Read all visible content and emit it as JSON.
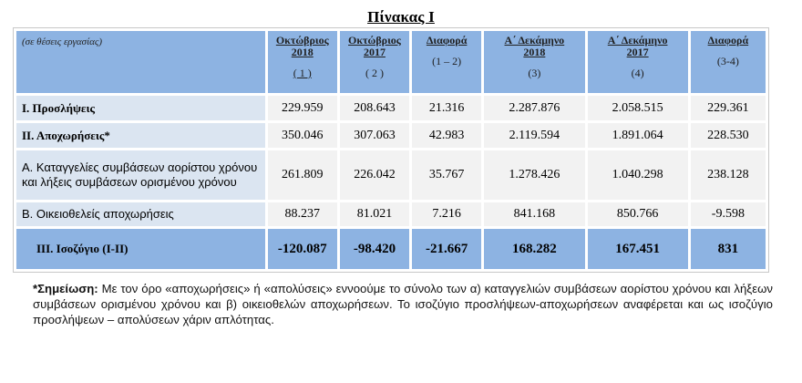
{
  "title": "Πίνακας Ι",
  "table": {
    "unit_label": "(σε θέσεις εργασίας)",
    "columns": [
      {
        "l1": "Οκτώβριος",
        "l2": "2018",
        "sub": "( 1 )"
      },
      {
        "l1": "Οκτώβριος",
        "l2": "2017",
        "sub": "( 2 )"
      },
      {
        "l1": "Διαφορά",
        "l2": "",
        "sub": "(1 – 2)"
      },
      {
        "l1": "Α΄ Δεκάμηνο",
        "l2": "2018",
        "sub": "(3)"
      },
      {
        "l1": "Α΄ Δεκάμηνο",
        "l2": "2017",
        "sub": "(4)"
      },
      {
        "l1": "Διαφορά",
        "l2": "",
        "sub": "(3-4)"
      }
    ],
    "rows": [
      {
        "label": "Ι. Προσλήψεις",
        "values": [
          "229.959",
          "208.643",
          "21.316",
          "2.287.876",
          "2.058.515",
          "229.361"
        ]
      },
      {
        "label": "ΙΙ. Αποχωρήσεις*",
        "values": [
          "350.046",
          "307.063",
          "42.983",
          "2.119.594",
          "1.891.064",
          "228.530"
        ]
      },
      {
        "label": "Α. Καταγγελίες συμβάσεων αορίστου χρόνου και λήξεις συμβάσεων ορισμένου χρόνου",
        "values": [
          "261.809",
          "226.042",
          "35.767",
          "1.278.426",
          "1.040.298",
          "238.128"
        ]
      },
      {
        "label": "Β. Οικειοθελείς αποχωρήσεις",
        "values": [
          "88.237",
          "81.021",
          "7.216",
          "841.168",
          "850.766",
          "-9.598"
        ]
      },
      {
        "label": "ΙΙΙ. Ισοζύγιο (Ι-ΙΙ)",
        "values": [
          "-120.087",
          "-98.420",
          "-21.667",
          "168.282",
          "167.451",
          "831"
        ]
      }
    ]
  },
  "note": {
    "prefix": "*Σημείωση:",
    "text": " Με τον όρο «αποχωρήσεις» ή «απολύσεις» εννοούμε το σύνολο των α) καταγγελιών συμβάσεων αορίστου χρόνου και λήξεων συμβάσεων ορισμένου χρόνου και β) οικειοθελών αποχωρήσεων. Το ισοζύγιο προσλήψεων-αποχωρήσεων αναφέρεται και ως ισοζύγιο προσλήψεων – απολύσεων χάριν απλότητας."
  }
}
